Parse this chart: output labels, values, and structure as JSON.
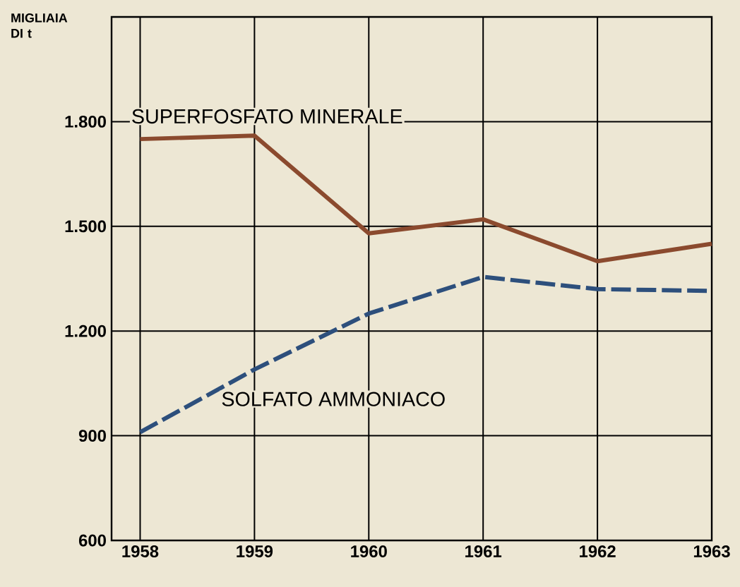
{
  "chart_data": {
    "type": "line",
    "ylabel": "MIGLIAIA DI t",
    "x": [
      1958,
      1959,
      1960,
      1961,
      1962,
      1963
    ],
    "series": [
      {
        "name": "SUPERFOSFATO MINERALE",
        "color": "#8b4a2e",
        "line_style": "solid",
        "values": [
          1750,
          1760,
          1480,
          1520,
          1400,
          1450
        ]
      },
      {
        "name": "SOLFATO AMMONIACO",
        "color": "#2d4f7c",
        "line_style": "dashed",
        "values": [
          910,
          1090,
          1250,
          1355,
          1320,
          1315
        ]
      }
    ],
    "xlim": [
      1957.75,
      1963
    ],
    "ylim": [
      600,
      2100
    ],
    "xticks": [
      1958,
      1959,
      1960,
      1961,
      1962,
      1963
    ],
    "yticks": [
      {
        "value": 600,
        "label": "600"
      },
      {
        "value": 900,
        "label": "900"
      },
      {
        "value": 1200,
        "label": "1.200"
      },
      {
        "value": 1500,
        "label": "1.500"
      },
      {
        "value": 1800,
        "label": "1.800"
      }
    ],
    "grid": true,
    "legend": false
  }
}
